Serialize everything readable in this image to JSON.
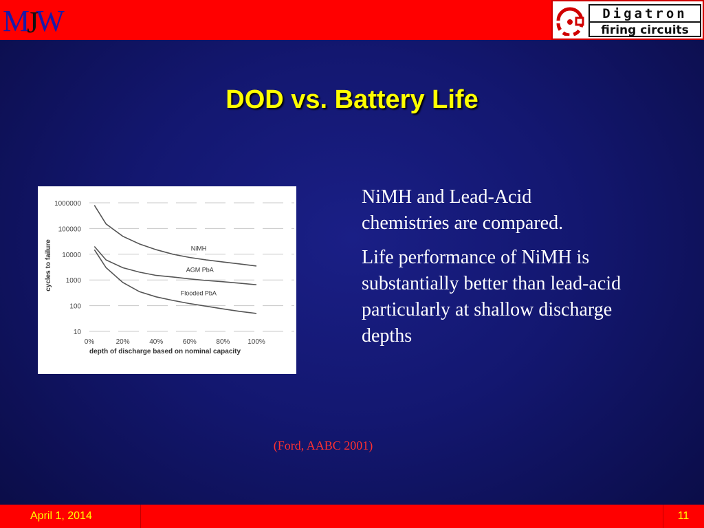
{
  "header": {
    "logo_left": {
      "m": "M",
      "j": "J",
      "w": "W"
    },
    "logo_right": {
      "line1": "Digatron",
      "line2": "firing circuits"
    }
  },
  "slide": {
    "title": "DOD vs. Battery Life",
    "paragraphs": [
      "NiMH and Lead-Acid chemistries are compared.",
      "Life performance of NiMH is substantially better than lead-acid particularly at shallow discharge depths"
    ],
    "citation": "(Ford, AABC 2001)"
  },
  "footer": {
    "date": "April 1, 2014",
    "page": "11"
  },
  "colors": {
    "title": "#ffff00",
    "citation": "#ff3030",
    "bar": "#ff0000",
    "chart_line": "#555555"
  },
  "chart_data": {
    "type": "line",
    "title": "",
    "xlabel": "depth of discharge based on nominal capacity",
    "ylabel": "cycles to failure",
    "x_tick_labels": [
      "0%",
      "20%",
      "40%",
      "60%",
      "80%",
      "100%"
    ],
    "y_tick_labels": [
      "1000000",
      "100000",
      "10000",
      "1000",
      "100",
      "10"
    ],
    "y_scale": "log",
    "xlim": [
      0,
      100
    ],
    "ylim": [
      10,
      1000000
    ],
    "grid": true,
    "series": [
      {
        "name": "NiMH",
        "x": [
          3,
          10,
          20,
          30,
          40,
          50,
          60,
          70,
          80,
          90,
          100
        ],
        "y": [
          800000,
          150000,
          50000,
          25000,
          15000,
          10000,
          7500,
          6000,
          5000,
          4200,
          3500
        ]
      },
      {
        "name": "AGM PbA",
        "x": [
          3,
          10,
          20,
          30,
          40,
          50,
          60,
          70,
          80,
          90,
          100
        ],
        "y": [
          20000,
          6000,
          3000,
          2000,
          1500,
          1300,
          1100,
          950,
          850,
          750,
          650
        ]
      },
      {
        "name": "Flooded PbA",
        "x": [
          3,
          10,
          20,
          30,
          40,
          50,
          60,
          70,
          80,
          90,
          100
        ],
        "y": [
          15000,
          3000,
          800,
          350,
          220,
          160,
          120,
          95,
          75,
          60,
          50
        ]
      }
    ]
  }
}
